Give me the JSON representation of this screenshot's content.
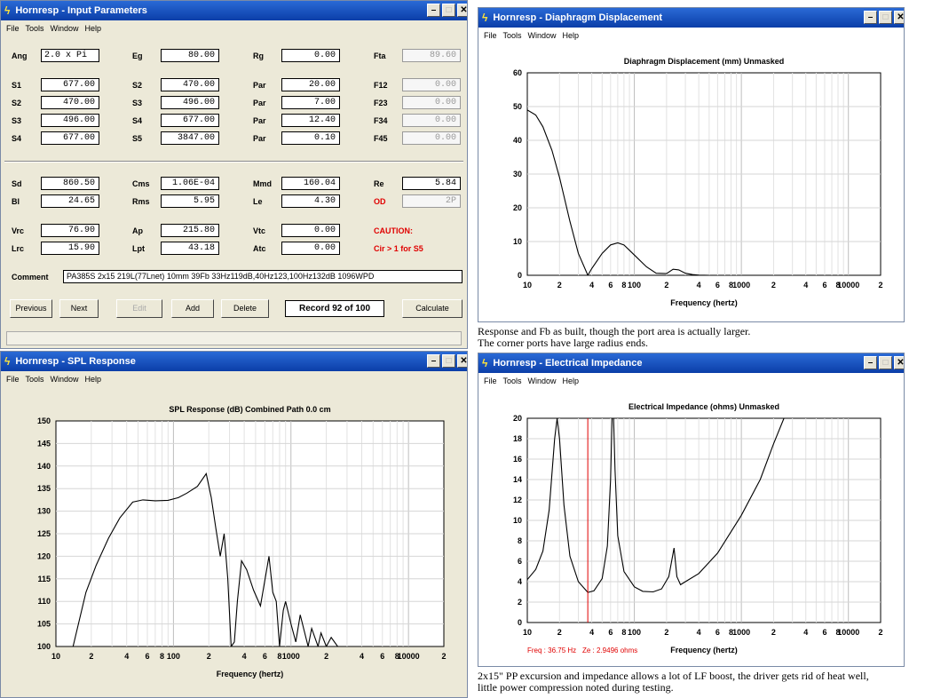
{
  "input_params": {
    "title": "Hornresp - Input Parameters",
    "menu": [
      "File",
      "Tools",
      "Window",
      "Help"
    ],
    "rows": [
      {
        "l1": "Ang",
        "v1": "2.0 x Pi",
        "l2": "Eg",
        "v2": "80.00",
        "l3": "Rg",
        "v3": "0.00",
        "l4": "Fta",
        "v4": "89.60"
      },
      {
        "l1": "S1",
        "v1": "677.00",
        "l2": "S2",
        "v2": "470.00",
        "l3": "Par",
        "v3": "20.00",
        "l4": "F12",
        "v4": "0.00"
      },
      {
        "l1": "S2",
        "v1": "470.00",
        "l2": "S3",
        "v2": "496.00",
        "l3": "Par",
        "v3": "7.00",
        "l4": "F23",
        "v4": "0.00"
      },
      {
        "l1": "S3",
        "v1": "496.00",
        "l2": "S4",
        "v2": "677.00",
        "l3": "Par",
        "v3": "12.40",
        "l4": "F34",
        "v4": "0.00"
      },
      {
        "l1": "S4",
        "v1": "677.00",
        "l2": "S5",
        "v2": "3847.00",
        "l3": "Par",
        "v3": "0.10",
        "l4": "F45",
        "v4": "0.00"
      },
      {
        "l1": "Sd",
        "v1": "860.50",
        "l2": "Cms",
        "v2": "1.06E-04",
        "l3": "Mmd",
        "v3": "160.04",
        "l4": "Re",
        "v4": "5.84"
      },
      {
        "l1": "Bl",
        "v1": "24.65",
        "l2": "Rms",
        "v2": "5.95",
        "l3": "Le",
        "v3": "4.30",
        "l4": "OD",
        "v4": "2P"
      },
      {
        "l1": "Vrc",
        "v1": "76.90",
        "l2": "Ap",
        "v2": "215.80",
        "l3": "Vtc",
        "v3": "0.00",
        "l4": "CAUTION:",
        "v4": ""
      },
      {
        "l1": "Lrc",
        "v1": "15.90",
        "l2": "Lpt",
        "v2": "43.18",
        "l3": "Atc",
        "v3": "0.00",
        "l4": "Cir > 1 for S5",
        "v4": ""
      }
    ],
    "comment_label": "Comment",
    "comment": "PA385S 2x15 219L(77Lnet) 10mm 39Fb 33Hz119dB,40Hz123,100Hz132dB 1096WPD",
    "buttons": {
      "previous": "Previous",
      "next": "Next",
      "edit": "Edit",
      "add": "Add",
      "delete": "Delete",
      "calculate": "Calculate"
    },
    "record": "Record 92 of 100"
  },
  "spl": {
    "title": "Hornresp - SPL Response",
    "menu": [
      "File",
      "Tools",
      "Window",
      "Help"
    ],
    "chart_title": "SPL Response (dB)   Combined   Path 0.0 cm",
    "xlabel": "Frequency (hertz)",
    "y_ticks": [
      "150",
      "145",
      "140",
      "135",
      "130",
      "125",
      "120",
      "115",
      "110",
      "105",
      "100"
    ],
    "x_ticks": [
      "10",
      "2",
      "4",
      "6",
      "8",
      "100",
      "2",
      "4",
      "6",
      "8",
      "1000",
      "2",
      "4",
      "6",
      "8",
      "10000",
      "2"
    ]
  },
  "disp": {
    "title": "Hornresp - Diaphragm Displacement",
    "menu": [
      "File",
      "Tools",
      "Window",
      "Help"
    ],
    "chart_title": "Diaphragm Displacement (mm)   Unmasked",
    "xlabel": "Frequency (hertz)",
    "y_ticks": [
      "60",
      "50",
      "40",
      "30",
      "20",
      "10",
      "0"
    ],
    "x_ticks": [
      "10",
      "2",
      "4",
      "6",
      "8",
      "100",
      "2",
      "4",
      "6",
      "8",
      "1000",
      "2",
      "4",
      "6",
      "8",
      "10000",
      "2"
    ],
    "caption": [
      "Response and Fb as built, though the port area is actually larger.",
      "The corner ports  have  large radius ends."
    ]
  },
  "imp": {
    "title": "Hornresp - Electrical Impedance",
    "menu": [
      "File",
      "Tools",
      "Window",
      "Help"
    ],
    "chart_title": "Electrical Impedance (ohms)   Unmasked",
    "xlabel": "Frequency (hertz)",
    "y_ticks": [
      "20",
      "18",
      "16",
      "14",
      "12",
      "10",
      "8",
      "6",
      "4",
      "2",
      "0"
    ],
    "x_ticks": [
      "10",
      "2",
      "4",
      "6",
      "8",
      "100",
      "2",
      "4",
      "6",
      "8",
      "1000",
      "2",
      "4",
      "6",
      "8",
      "10000",
      "2"
    ],
    "freq_readout": "Freq : 36.75 Hz",
    "ze_readout": "Ze : 2.9496 ohms",
    "caption": [
      "2x15\" PP excursion and impedance allows a lot of LF boost, the driver gets rid of heat well,",
      "little power compression noted during testing."
    ]
  },
  "chart_data": [
    {
      "type": "line",
      "title": "SPL Response (dB)   Combined   Path 0.0 cm",
      "xlabel": "Frequency (hertz)",
      "ylabel": "",
      "x_scale": "log",
      "xlim": [
        10,
        20000
      ],
      "ylim": [
        100,
        150
      ],
      "grid": true,
      "x": [
        14,
        18,
        22,
        28,
        35,
        45,
        55,
        70,
        90,
        110,
        130,
        160,
        190,
        210,
        230,
        250,
        270,
        290,
        310,
        330,
        350,
        380,
        420,
        480,
        550,
        650,
        700,
        750,
        800,
        860,
        900,
        1000,
        1100,
        1200,
        1400,
        1500,
        1700,
        1800,
        2000,
        2200,
        2500
      ],
      "y": [
        100,
        112,
        118,
        124,
        128.5,
        132,
        132.5,
        132.3,
        132.4,
        133,
        134,
        135.5,
        138.3,
        133,
        126,
        120,
        125,
        115,
        100,
        101,
        110,
        119,
        117,
        112.5,
        109,
        120,
        112,
        110,
        100,
        108,
        110,
        105,
        101,
        107,
        100,
        104,
        100,
        103,
        100,
        102,
        100
      ]
    },
    {
      "type": "line",
      "title": "Diaphragm Displacement (mm)   Unmasked",
      "xlabel": "Frequency (hertz)",
      "ylabel": "",
      "x_scale": "log",
      "xlim": [
        10,
        20000
      ],
      "ylim": [
        0,
        60
      ],
      "grid": true,
      "x": [
        10,
        12,
        14,
        17,
        20,
        25,
        30,
        36.75,
        40,
        50,
        60,
        70,
        80,
        100,
        130,
        160,
        200,
        230,
        260,
        300,
        350,
        400,
        500
      ],
      "y": [
        49,
        47.5,
        44,
        37,
        29,
        16,
        6.5,
        0,
        2,
        6.5,
        9,
        9.6,
        9,
        6,
        2.5,
        0.6,
        0.5,
        1.8,
        1.6,
        0.6,
        0.2,
        0.05,
        0
      ]
    },
    {
      "type": "line",
      "title": "Electrical Impedance (ohms)   Unmasked",
      "xlabel": "Frequency (hertz)",
      "ylabel": "",
      "x_scale": "log",
      "xlim": [
        10,
        20000
      ],
      "ylim": [
        0,
        20
      ],
      "grid": true,
      "x": [
        10,
        12,
        14,
        16,
        18,
        19,
        20,
        22,
        25,
        30,
        36.75,
        42,
        50,
        56,
        60,
        62,
        64,
        66,
        70,
        80,
        100,
        120,
        150,
        180,
        210,
        235,
        250,
        270,
        300,
        400,
        600,
        1000,
        1500,
        2000,
        2500
      ],
      "y": [
        4.2,
        5.2,
        7,
        11,
        18,
        20,
        18,
        11.5,
        6.5,
        4,
        2.95,
        3.1,
        4.3,
        7.5,
        14,
        20,
        20,
        15,
        8.5,
        5,
        3.5,
        3.05,
        3,
        3.3,
        4.5,
        7.3,
        4.5,
        3.7,
        4,
        4.8,
        6.8,
        10.5,
        14,
        17.5,
        20
      ]
    }
  ]
}
